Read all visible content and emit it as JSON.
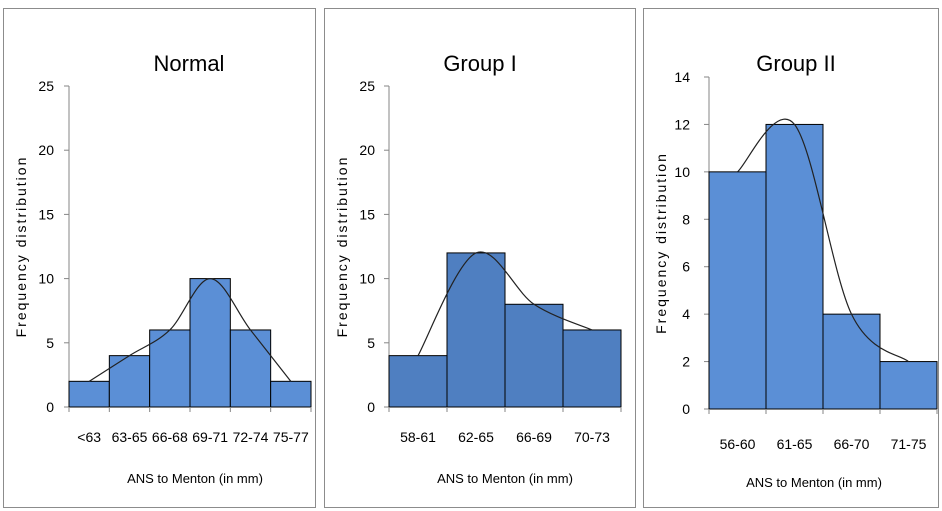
{
  "chart_data": [
    {
      "type": "bar",
      "title": "Normal",
      "categories": [
        "<63",
        "63-65",
        "66-68",
        "69-71",
        "72-74",
        "75-77"
      ],
      "values": [
        2,
        4,
        6,
        10,
        6,
        2
      ],
      "ylabel": "Frequency distribution",
      "xlabel": "ANS to Menton (in mm)",
      "ylim": [
        0,
        25
      ],
      "yticks": [
        0,
        5,
        10,
        15,
        20,
        25
      ],
      "bar_gaps": false,
      "overlay": "smoothed frequency curve",
      "grid": false,
      "bar_color": "#5b8fd6"
    },
    {
      "type": "bar",
      "title": "Group I",
      "categories": [
        "58-61",
        "62-65",
        "66-69",
        "70-73"
      ],
      "values": [
        4,
        12,
        8,
        6
      ],
      "ylabel": "Frequency distribution",
      "xlabel": "ANS to Menton (in mm)",
      "ylim": [
        0,
        25
      ],
      "yticks": [
        0,
        5,
        10,
        15,
        20,
        25
      ],
      "bar_gaps": false,
      "overlay": "smoothed frequency curve",
      "grid": false,
      "bar_color": "#4f7fc1"
    },
    {
      "type": "bar",
      "title": "Group II",
      "categories": [
        "56-60",
        "61-65",
        "66-70",
        "71-75"
      ],
      "values": [
        10,
        12,
        4,
        2
      ],
      "ylabel": "Frequency distribution",
      "xlabel": "ANS to Menton (in mm)",
      "ylim": [
        0,
        14
      ],
      "yticks": [
        0,
        2,
        4,
        6,
        8,
        10,
        12,
        14
      ],
      "bar_gaps": false,
      "overlay": "smoothed frequency curve",
      "grid": false,
      "bar_color": "#5b8fd6"
    }
  ]
}
